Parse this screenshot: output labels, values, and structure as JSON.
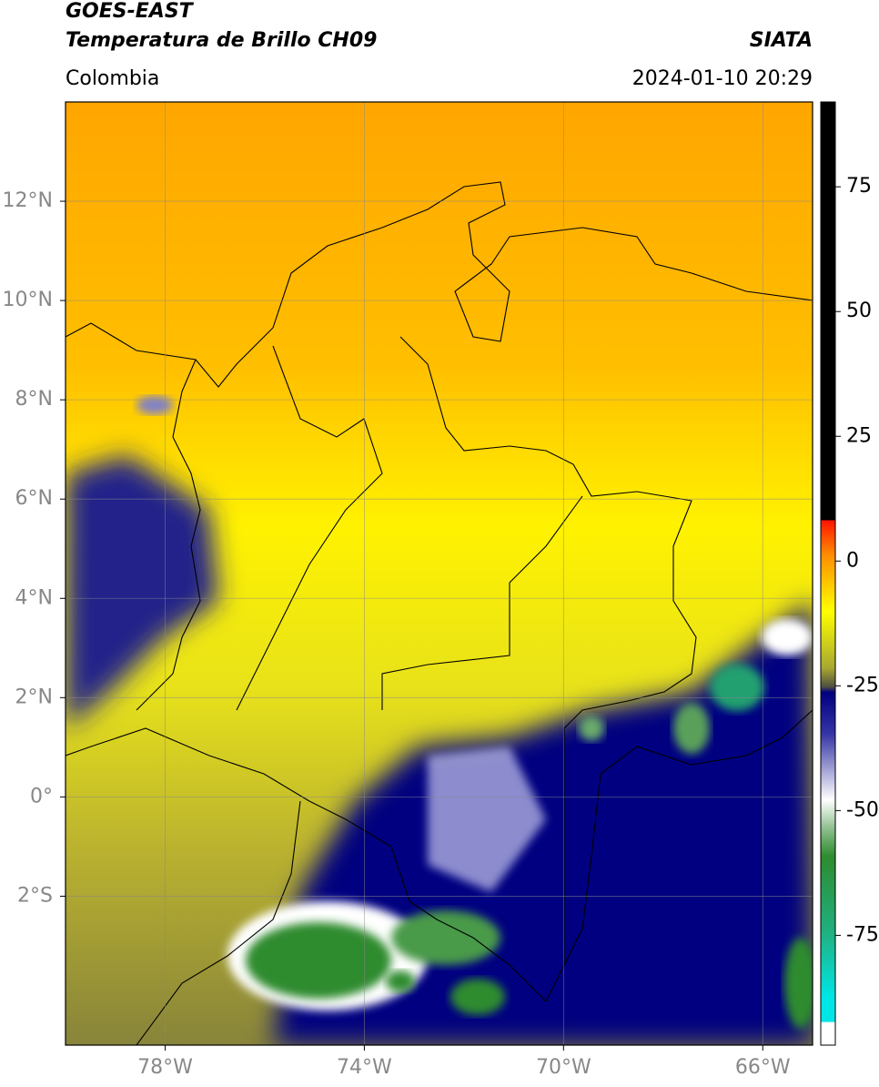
{
  "header": {
    "title": "GOES-EAST",
    "subtitle": "Temperatura de Brillo CH09",
    "source": "SIATA",
    "region": "Colombia",
    "datetime": "2024-01-10 20:29"
  },
  "map": {
    "xlim": [
      -80,
      -65
    ],
    "ylim": [
      -5,
      14
    ],
    "xticks": [
      {
        "value": -78,
        "label": "78°W"
      },
      {
        "value": -74,
        "label": "74°W"
      },
      {
        "value": -70,
        "label": "70°W"
      },
      {
        "value": -66,
        "label": "66°W"
      }
    ],
    "yticks": [
      {
        "value": 12,
        "label": "12°N"
      },
      {
        "value": 10,
        "label": "10°N"
      },
      {
        "value": 8,
        "label": "8°N"
      },
      {
        "value": 6,
        "label": "6°N"
      },
      {
        "value": 4,
        "label": "4°N"
      },
      {
        "value": 2,
        "label": "2°N"
      },
      {
        "value": 0,
        "label": "0°"
      },
      {
        "value": -2,
        "label": "2°S"
      }
    ],
    "grid": true
  },
  "colorbar": {
    "lim": [
      -97,
      92
    ],
    "ticks": [
      75,
      50,
      25,
      0,
      -25,
      -50,
      -75
    ]
  }
}
